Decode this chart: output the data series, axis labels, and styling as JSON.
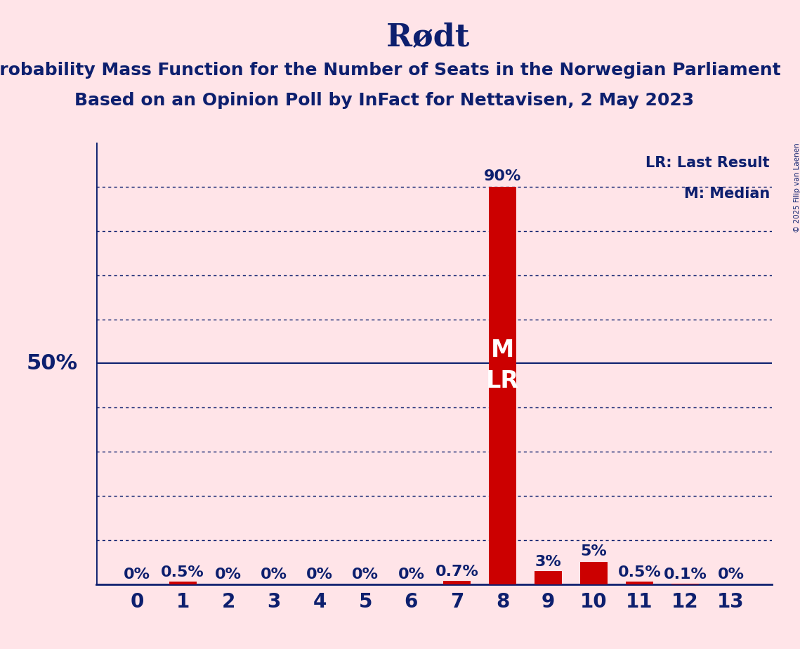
{
  "title": "Rødt",
  "subtitle1": "Probability Mass Function for the Number of Seats in the Norwegian Parliament",
  "subtitle2": "Based on an Opinion Poll by InFact for Nettavisen, 2 May 2023",
  "copyright": "© 2025 Filip van Laenen",
  "categories": [
    0,
    1,
    2,
    3,
    4,
    5,
    6,
    7,
    8,
    9,
    10,
    11,
    12,
    13
  ],
  "values": [
    0.0,
    0.5,
    0.0,
    0.0,
    0.0,
    0.0,
    0.0,
    0.7,
    90.0,
    3.0,
    5.0,
    0.5,
    0.1,
    0.0
  ],
  "bar_labels": [
    "0%",
    "0.5%",
    "0%",
    "0%",
    "0%",
    "0%",
    "0%",
    "0.7%",
    "",
    "3%",
    "5%",
    "0.5%",
    "0.1%",
    "0%"
  ],
  "bar_color": "#CC0000",
  "background_color": "#FFE4E8",
  "text_color": "#0D1F6E",
  "title_fontsize": 32,
  "subtitle_fontsize": 18,
  "bar_label_fontsize": 16,
  "axis_label_fontsize": 20,
  "median_seat": 8,
  "last_result_seat": 8,
  "median_label": "M",
  "lr_label": "LR",
  "legend_lr": "LR: Last Result",
  "legend_m": "M: Median",
  "fifty_pct_label": "50%",
  "ninety_pct_label": "90%",
  "ylim": [
    0,
    100
  ],
  "yticks": [
    10,
    20,
    30,
    40,
    50,
    60,
    70,
    80,
    90
  ],
  "dotted_line_color": "#0D1F6E",
  "solid_line_color": "#0D1F6E"
}
